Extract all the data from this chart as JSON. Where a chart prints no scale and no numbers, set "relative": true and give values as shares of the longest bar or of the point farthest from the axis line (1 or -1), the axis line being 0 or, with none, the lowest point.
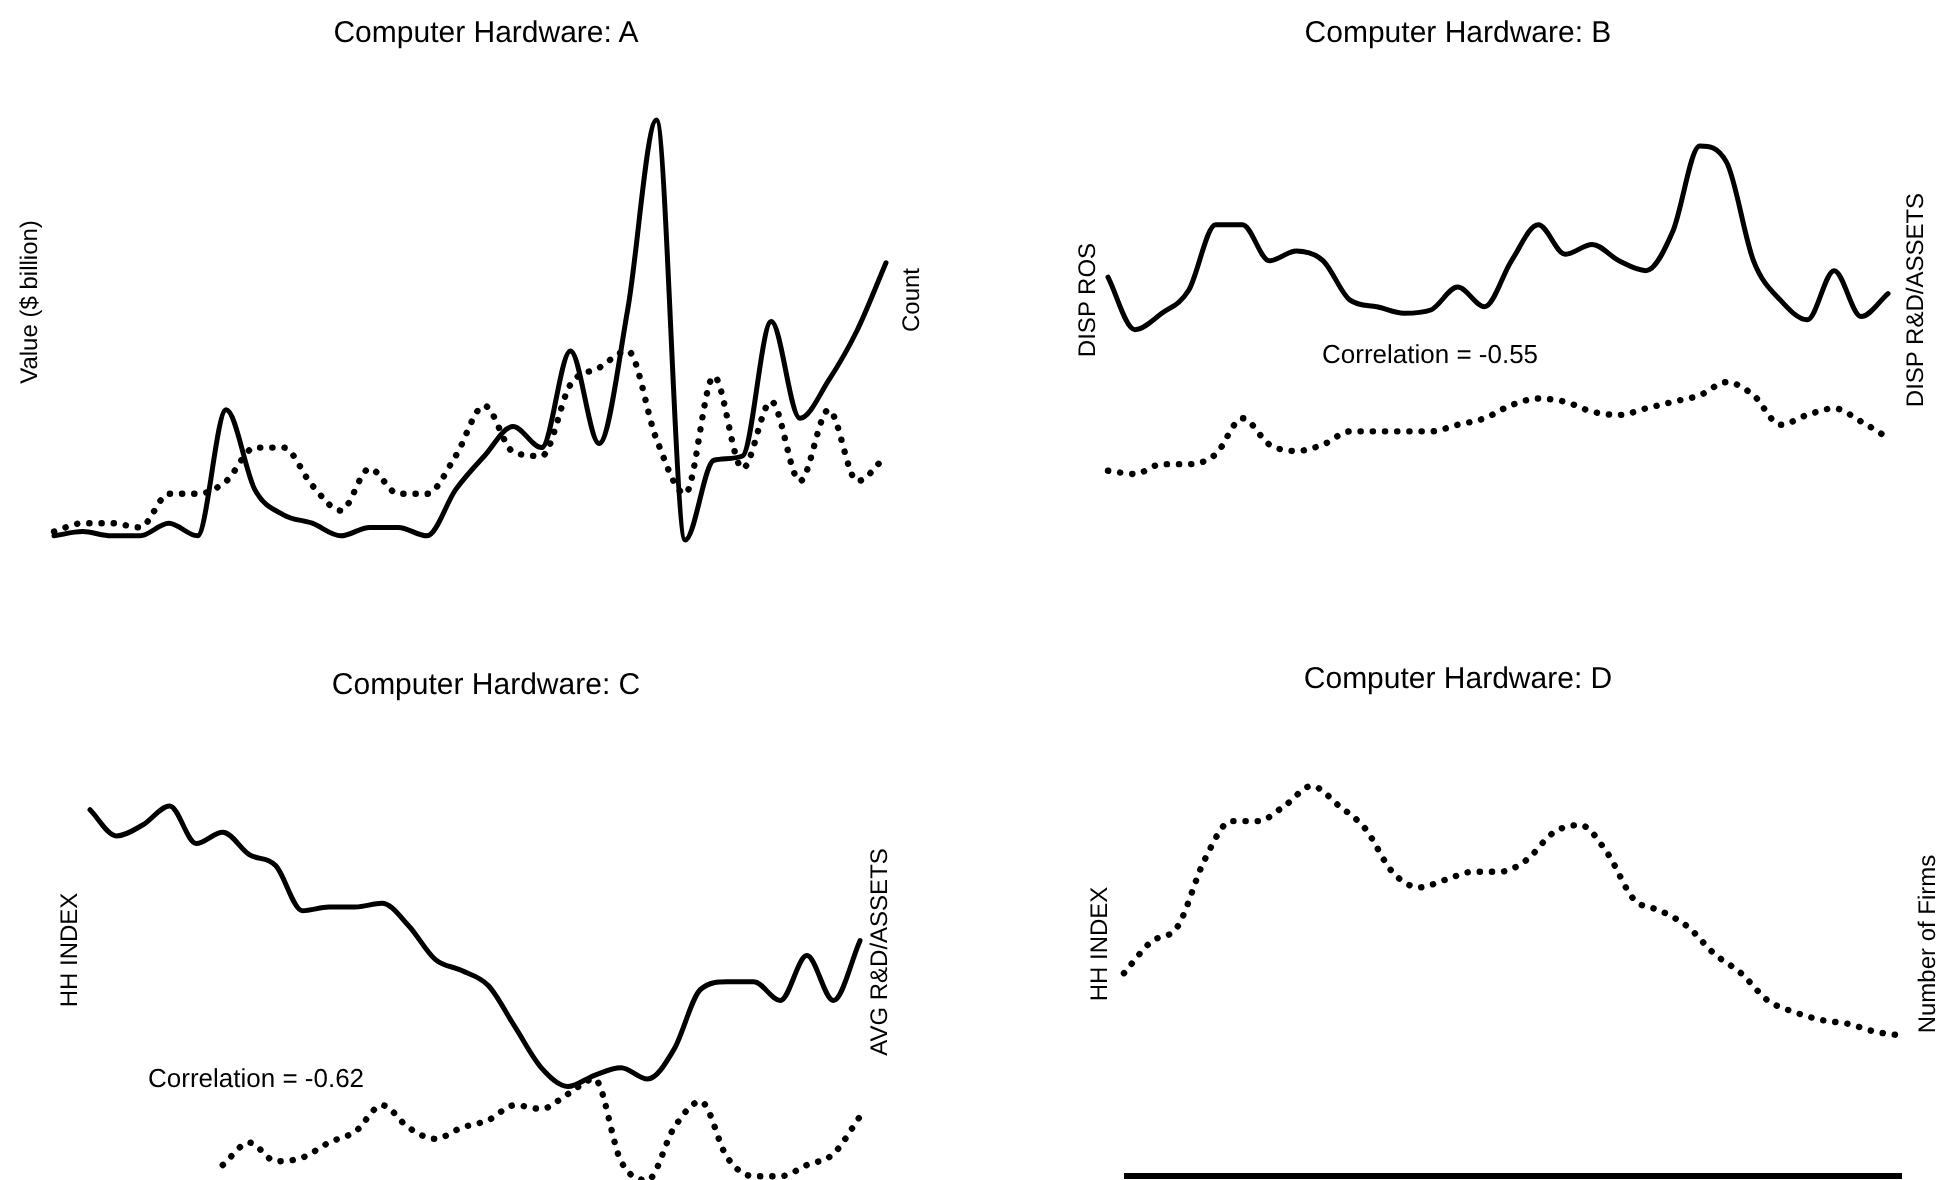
{
  "chart_data": [
    {
      "type": "line",
      "title": "Computer Hardware: A",
      "ylabel": "Value ($ billion)",
      "y2label": "Count",
      "relative": true,
      "categories": [
        null,
        null,
        null,
        null,
        null,
        null,
        null,
        null,
        null,
        null,
        null,
        null,
        null,
        null,
        null,
        null,
        null,
        null,
        null,
        null,
        null,
        null,
        null,
        null,
        null,
        null,
        null,
        null,
        null,
        null
      ],
      "series": [
        {
          "color": "#000000",
          "line_style": "solid",
          "values": [
            0.01,
            0.02,
            0.01,
            0.01,
            0.04,
            0.01,
            0.31,
            0.12,
            0.06,
            0.04,
            0.01,
            0.03,
            0.03,
            0.01,
            0.12,
            0.2,
            0.27,
            0.22,
            0.45,
            0.23,
            0.55,
            1,
            0,
            0.19,
            0.2,
            0.52,
            0.29,
            0.38,
            0.5,
            0.66
          ]
        },
        {
          "color": "#000000",
          "line_style": "dotted",
          "values": [
            0.02,
            0.04,
            0.04,
            0.03,
            0.11,
            0.11,
            0.14,
            0.22,
            0.22,
            0.13,
            0.07,
            0.17,
            0.11,
            0.11,
            0.2,
            0.32,
            0.21,
            0.2,
            0.37,
            0.41,
            0.45,
            0.24,
            0.11,
            0.39,
            0.17,
            0.33,
            0.14,
            0.31,
            0.14,
            0.2
          ]
        }
      ]
    },
    {
      "type": "line",
      "title": "Computer Hardware: B",
      "ylabel": "DISP ROS",
      "y2label": "DISP R&D/ASSETS",
      "relative": true,
      "annotations": [
        "Correlation = -0.55"
      ],
      "categories": [
        null,
        null,
        null,
        null,
        null,
        null,
        null,
        null,
        null,
        null,
        null,
        null,
        null,
        null,
        null,
        null,
        null,
        null,
        null,
        null,
        null,
        null,
        null,
        null,
        null,
        null,
        null,
        null,
        null,
        null
      ],
      "series": [
        {
          "color": "#000000",
          "line_style": "solid",
          "values": [
            0.6,
            0.44,
            0.49,
            0.56,
            0.76,
            0.76,
            0.65,
            0.68,
            0.65,
            0.53,
            0.51,
            0.49,
            0.5,
            0.57,
            0.51,
            0.65,
            0.76,
            0.67,
            0.7,
            0.65,
            0.62,
            0.74,
            1,
            0.95,
            0.65,
            0.53,
            0.47,
            0.62,
            0.48,
            0.55
          ]
        },
        {
          "color": "#000000",
          "line_style": "dotted",
          "values": [
            0.01,
            0,
            0.03,
            0.03,
            0.06,
            0.17,
            0.09,
            0.07,
            0.09,
            0.13,
            0.13,
            0.13,
            0.13,
            0.15,
            0.17,
            0.21,
            0.23,
            0.22,
            0.19,
            0.18,
            0.2,
            0.22,
            0.24,
            0.28,
            0.24,
            0.15,
            0.18,
            0.2,
            0.16,
            0.11
          ]
        }
      ]
    },
    {
      "type": "line",
      "title": "Computer Hardware: C",
      "ylabel": "HH INDEX",
      "y2label": "AVG R&D/ASSETS",
      "relative": true,
      "annotations": [
        "Correlation = -0.62"
      ],
      "categories": [
        null,
        null,
        null,
        null,
        null,
        null,
        null,
        null,
        null,
        null,
        null,
        null,
        null,
        null,
        null,
        null,
        null,
        null,
        null,
        null,
        null,
        null,
        null,
        null,
        null,
        null,
        null,
        null,
        null,
        null
      ],
      "series": [
        {
          "color": "#000000",
          "line_style": "solid",
          "values": [
            0.99,
            0.92,
            0.95,
            1,
            0.9,
            0.93,
            0.87,
            0.84,
            0.72,
            0.73,
            0.73,
            0.74,
            0.68,
            0.59,
            0.56,
            0.52,
            0.41,
            0.3,
            0.25,
            0.28,
            0.3,
            0.27,
            0.35,
            0.51,
            0.53,
            0.53,
            0.48,
            0.6,
            0.48,
            0.64
          ]
        },
        {
          "color": "#000000",
          "line_style": "dotted",
          "values": [
            null,
            null,
            null,
            null,
            null,
            0.04,
            0.1,
            0.05,
            0.06,
            0.1,
            0.13,
            0.2,
            0.14,
            0.11,
            0.14,
            0.16,
            0.2,
            0.19,
            0.23,
            0.27,
            0.05,
            0,
            0.14,
            0.21,
            0.06,
            0.01,
            0.01,
            0.04,
            0.07,
            0.17
          ]
        }
      ]
    },
    {
      "type": "line",
      "title": "Computer Hardware: D",
      "ylabel": "HH INDEX",
      "y2label": "Number of Firms",
      "relative": true,
      "categories": [
        null,
        null,
        null,
        null,
        null,
        null,
        null,
        null,
        null,
        null,
        null,
        null,
        null,
        null,
        null,
        null,
        null,
        null,
        null,
        null,
        null,
        null,
        null,
        null,
        null,
        null,
        null,
        null,
        null,
        null
      ],
      "ref_lines": [
        {
          "axis": "y",
          "value": 0,
          "color": "#000000",
          "line_style": "solid"
        }
      ],
      "series": [
        {
          "color": "#000000",
          "line_style": "dotted",
          "values": [
            0.52,
            0.6,
            0.64,
            0.81,
            0.91,
            0.91,
            0.95,
            1,
            0.95,
            0.89,
            0.78,
            0.74,
            0.76,
            0.78,
            0.78,
            0.81,
            0.88,
            0.9,
            0.83,
            0.71,
            0.68,
            0.64,
            0.57,
            0.52,
            0.45,
            0.42,
            0.4,
            0.39,
            0.37,
            0.36
          ]
        }
      ]
    }
  ]
}
